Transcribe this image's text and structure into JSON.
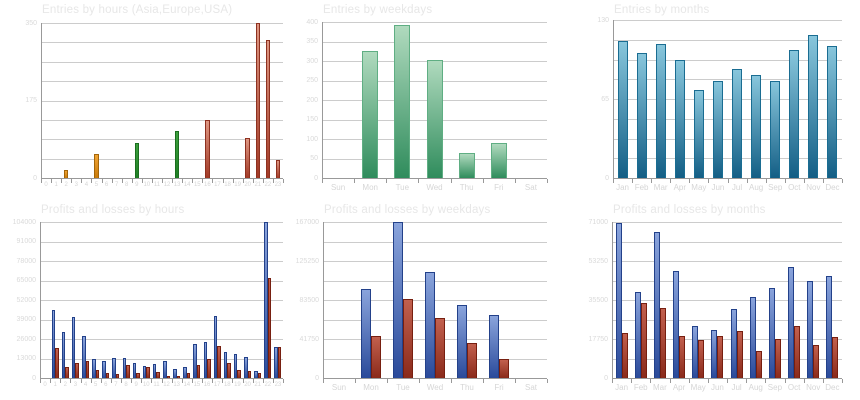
{
  "palette": {
    "orange": {
      "top": "#f1a433",
      "bottom": "#c87a0a",
      "border": "#a3650a"
    },
    "green": {
      "top": "#3da03e",
      "bottom": "#1e7e23",
      "border": "#1a6e1e"
    },
    "red": {
      "top": "#de9682",
      "bottom": "#a23a26",
      "border": "#8e3120"
    },
    "seagreen": {
      "top": "#b0dabe",
      "bottom": "#2f8c5c",
      "border": "#5fae83"
    },
    "teal": {
      "top": "#88c6dc",
      "bottom": "#135e85",
      "border": "#1a6d92"
    },
    "blue": {
      "top": "#8aa4dc",
      "bottom": "#2a4a9a",
      "border": "#23418a"
    },
    "brick": {
      "top": "#c2604e",
      "bottom": "#8a2a1a",
      "border": "#771f10"
    }
  },
  "chart_data": [
    {
      "type": "bar",
      "title": "Entries by hours (Asia,Europe,USA)",
      "categories": [
        "0",
        "1",
        "2",
        "3",
        "4",
        "5",
        "6",
        "7",
        "8",
        "9",
        "10",
        "11",
        "12",
        "13",
        "14",
        "15",
        "16",
        "17",
        "18",
        "19",
        "20",
        "21",
        "22",
        "23"
      ],
      "series": [
        {
          "name": "Entries",
          "color": "red",
          "values": [
            0,
            0,
            17,
            0,
            0,
            55,
            0,
            0,
            0,
            79,
            0,
            0,
            0,
            105,
            0,
            0,
            132,
            0,
            0,
            0,
            90,
            350,
            311,
            40
          ]
        }
      ],
      "value_colors": [
        "",
        "",
        "orange",
        "",
        "",
        "orange",
        "",
        "",
        "",
        "green",
        "",
        "",
        "",
        "green",
        "",
        "",
        "red",
        "",
        "",
        "",
        "red",
        "red",
        "red",
        "red"
      ],
      "ylim": [
        0,
        350
      ],
      "grid_intervals": 8,
      "yticks": [
        {
          "value": 0,
          "label": "0"
        },
        {
          "value": 175,
          "label": "175"
        },
        {
          "value": 350,
          "label": "350"
        }
      ],
      "legend": "none",
      "grid": true
    },
    {
      "type": "bar",
      "title": "Entries by weekdays",
      "categories": [
        "Sun",
        "Mon",
        "Tue",
        "Wed",
        "Thu",
        "Fri",
        "Sat"
      ],
      "series": [
        {
          "name": "Entries",
          "color": "seagreen",
          "values": [
            0,
            325,
            392,
            302,
            64,
            89,
            0
          ]
        }
      ],
      "ylim": [
        0,
        400
      ],
      "grid_intervals": 8,
      "yticks": [
        {
          "value": 0,
          "label": "0"
        },
        {
          "value": 50,
          "label": "50"
        },
        {
          "value": 100,
          "label": "100"
        },
        {
          "value": 150,
          "label": "150"
        },
        {
          "value": 200,
          "label": "200"
        },
        {
          "value": 250,
          "label": "250"
        },
        {
          "value": 300,
          "label": "300"
        },
        {
          "value": 350,
          "label": "350"
        },
        {
          "value": 400,
          "label": "400"
        }
      ],
      "legend": "none",
      "grid": true
    },
    {
      "type": "bar",
      "title": "Entries by months",
      "categories": [
        "Jan",
        "Feb",
        "Mar",
        "Apr",
        "May",
        "Jun",
        "Jul",
        "Aug",
        "Sep",
        "Oct",
        "Nov",
        "Dec"
      ],
      "series": [
        {
          "name": "Entries",
          "color": "teal",
          "values": [
            113,
            103,
            110,
            97,
            72,
            80,
            90,
            85,
            80,
            105,
            118,
            109
          ]
        }
      ],
      "ylim": [
        0,
        130
      ],
      "grid_intervals": 8,
      "yticks": [
        {
          "value": 0,
          "label": "0"
        },
        {
          "value": 65,
          "label": "65"
        },
        {
          "value": 130,
          "label": "130"
        }
      ],
      "legend": "none",
      "grid": true
    },
    {
      "type": "bar",
      "title": "Profits and losses by hours",
      "categories": [
        "0",
        "1",
        "2",
        "3",
        "4",
        "5",
        "6",
        "7",
        "8",
        "9",
        "10",
        "11",
        "12",
        "13",
        "14",
        "15",
        "16",
        "17",
        "18",
        "19",
        "20",
        "21",
        "22",
        "23"
      ],
      "series": [
        {
          "name": "Profits",
          "color": "blue",
          "values": [
            0,
            45500,
            30500,
            40500,
            28000,
            12500,
            11500,
            13500,
            13500,
            10000,
            8000,
            9500,
            11500,
            6000,
            7000,
            22500,
            24000,
            41500,
            17500,
            16000,
            14000,
            4500,
            104000,
            20500
          ]
        },
        {
          "name": "Losses",
          "color": "brick",
          "values": [
            0,
            20000,
            7500,
            10000,
            11500,
            5500,
            3500,
            2500,
            8500,
            3500,
            7000,
            4000,
            1500,
            1000,
            3500,
            8500,
            12500,
            21500,
            10000,
            5000,
            4500,
            3500,
            66500,
            20500
          ]
        }
      ],
      "ylim": [
        0,
        104000
      ],
      "grid_intervals": 8,
      "yticks": [
        {
          "value": 0,
          "label": "0"
        },
        {
          "value": 13000,
          "label": "13000"
        },
        {
          "value": 26000,
          "label": "26000"
        },
        {
          "value": 39000,
          "label": "39000"
        },
        {
          "value": 52000,
          "label": "52000"
        },
        {
          "value": 65000,
          "label": "65000"
        },
        {
          "value": 78000,
          "label": "78000"
        },
        {
          "value": 91000,
          "label": "91000"
        },
        {
          "value": 104000,
          "label": "104000"
        }
      ],
      "legend": "none",
      "grid": true
    },
    {
      "type": "bar",
      "title": "Profits and losses by weekdays",
      "categories": [
        "Sun",
        "Mon",
        "Tue",
        "Wed",
        "Thu",
        "Fri",
        "Sat"
      ],
      "series": [
        {
          "name": "Profits",
          "color": "blue",
          "values": [
            0,
            95000,
            167000,
            113500,
            78000,
            67500,
            0
          ]
        },
        {
          "name": "Losses",
          "color": "brick",
          "values": [
            0,
            45000,
            84500,
            64000,
            37500,
            20500,
            0
          ]
        }
      ],
      "ylim": [
        0,
        167000
      ],
      "grid_intervals": 8,
      "yticks": [
        {
          "value": 0,
          "label": "0"
        },
        {
          "value": 41750,
          "label": "41750"
        },
        {
          "value": 83500,
          "label": "83500"
        },
        {
          "value": 125250,
          "label": "125250"
        },
        {
          "value": 167000,
          "label": "167000"
        }
      ],
      "legend": "none",
      "grid": true
    },
    {
      "type": "bar",
      "title": "Profits and losses by months",
      "categories": [
        "Jan",
        "Feb",
        "Mar",
        "Apr",
        "May",
        "Jun",
        "Jul",
        "Aug",
        "Sep",
        "Oct",
        "Nov",
        "Dec"
      ],
      "series": [
        {
          "name": "Profits",
          "color": "blue",
          "values": [
            70500,
            39000,
            66500,
            48500,
            23500,
            22000,
            31500,
            37000,
            41000,
            50500,
            44000,
            46500
          ]
        },
        {
          "name": "Losses",
          "color": "brick",
          "values": [
            20500,
            34000,
            32000,
            19000,
            17500,
            19000,
            21500,
            12500,
            17750,
            23500,
            15000,
            18500
          ]
        }
      ],
      "ylim": [
        0,
        71000
      ],
      "grid_intervals": 8,
      "yticks": [
        {
          "value": 0,
          "label": "0"
        },
        {
          "value": 17750,
          "label": "17750"
        },
        {
          "value": 35500,
          "label": "35500"
        },
        {
          "value": 53250,
          "label": "53250"
        },
        {
          "value": 71000,
          "label": "71000"
        }
      ],
      "legend": "none",
      "grid": true
    }
  ]
}
